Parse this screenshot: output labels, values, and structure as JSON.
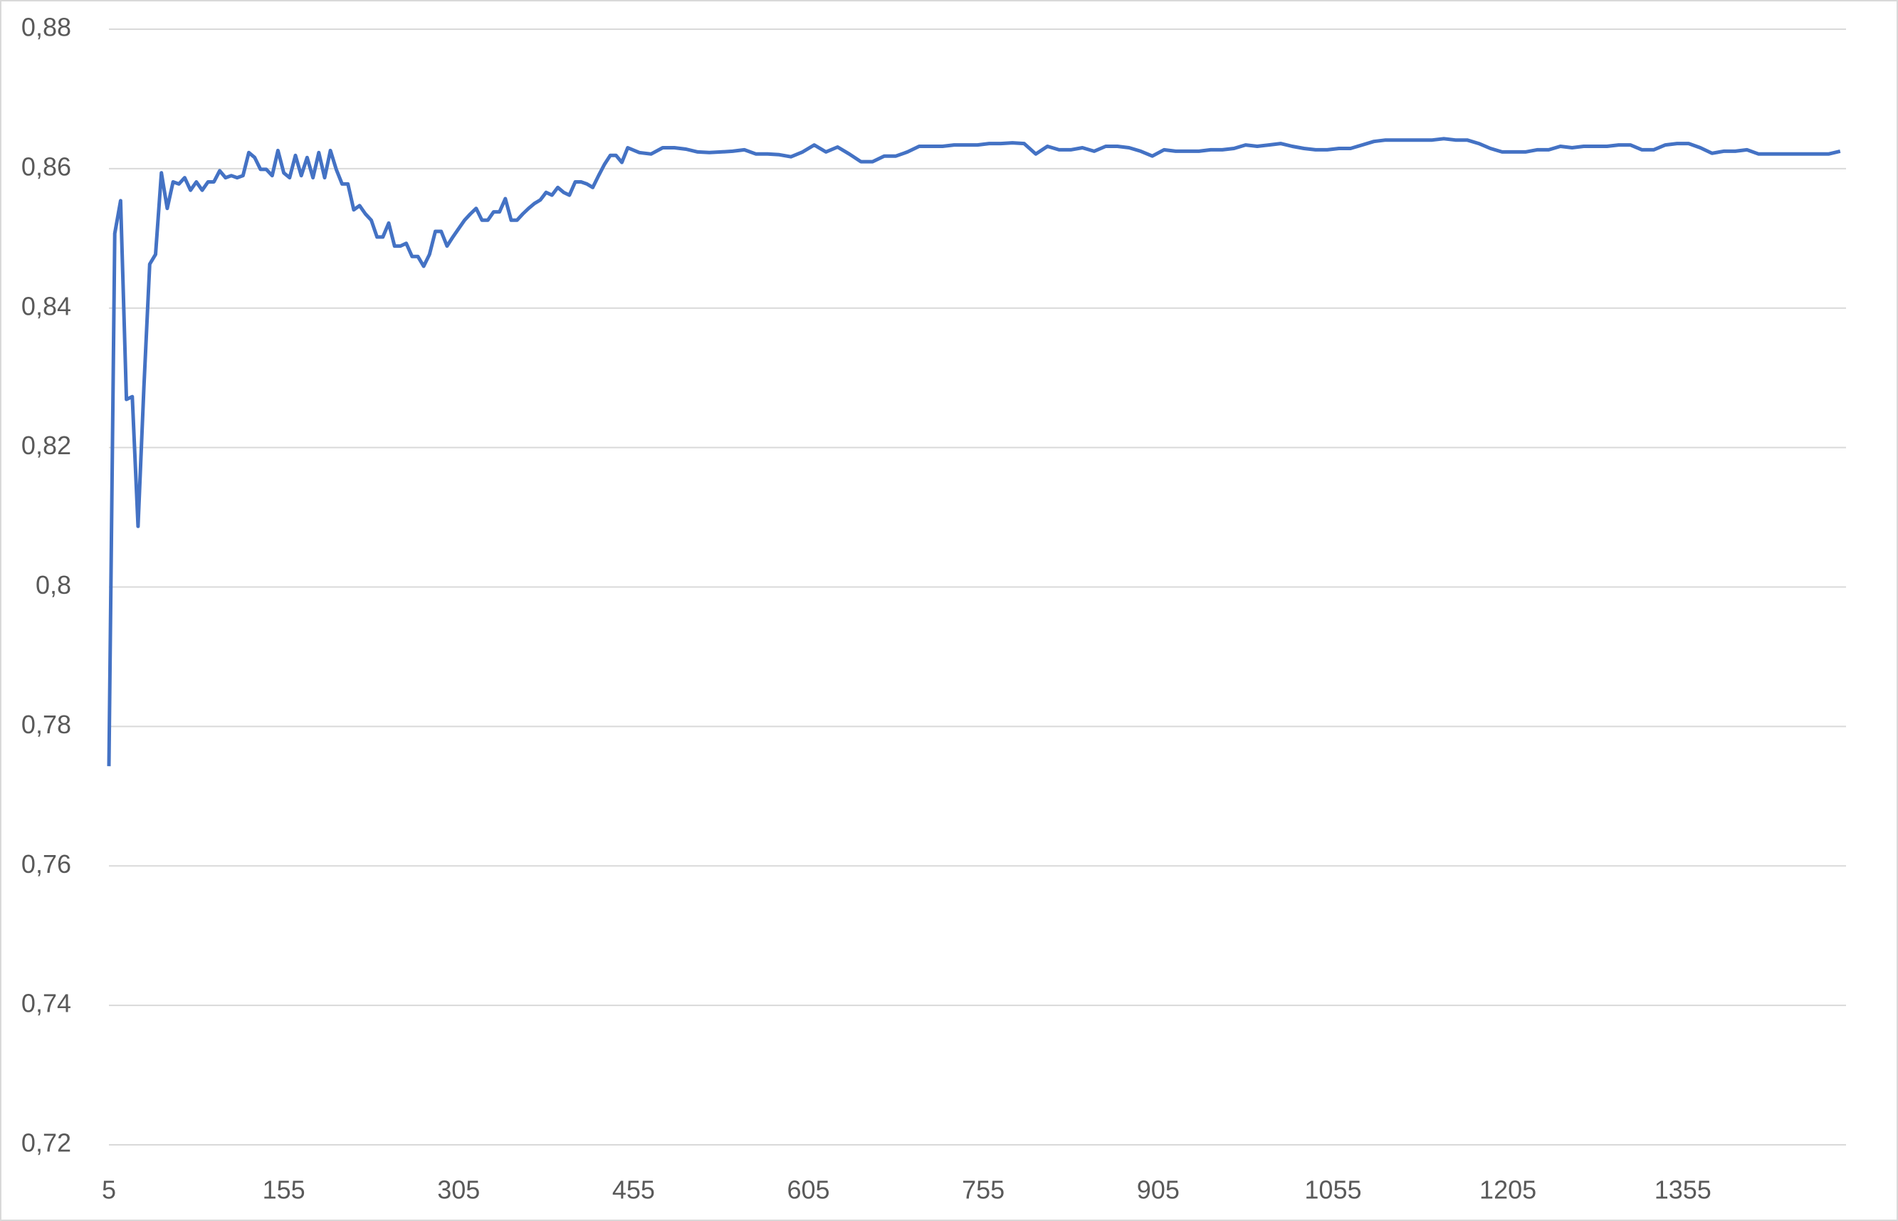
{
  "chart_data": {
    "type": "line",
    "color": "#4472c4",
    "grid": true,
    "x": [
      5,
      10,
      15,
      20,
      25,
      30,
      35,
      40,
      45,
      50,
      55,
      60,
      65,
      70,
      75,
      80,
      85,
      90,
      95,
      100,
      105,
      110,
      115,
      120,
      125,
      130,
      135,
      140,
      145,
      150,
      155,
      160,
      165,
      170,
      175,
      180,
      185,
      190,
      195,
      200,
      205,
      210,
      215,
      220,
      225,
      230,
      235,
      240,
      245,
      250,
      255,
      260,
      265,
      270,
      275,
      280,
      285,
      290,
      295,
      300,
      305,
      310,
      315,
      320,
      325,
      330,
      335,
      340,
      345,
      350,
      355,
      360,
      365,
      370,
      375,
      380,
      385,
      390,
      395,
      400,
      405,
      410,
      415,
      420,
      425,
      430,
      435,
      440,
      445,
      450,
      460,
      470,
      480,
      490,
      500,
      510,
      520,
      530,
      540,
      550,
      560,
      570,
      580,
      590,
      600,
      610,
      620,
      630,
      640,
      650,
      660,
      670,
      680,
      690,
      700,
      710,
      720,
      730,
      740,
      750,
      760,
      770,
      780,
      790,
      800,
      810,
      820,
      830,
      840,
      850,
      860,
      870,
      880,
      890,
      900,
      910,
      920,
      930,
      940,
      950,
      960,
      970,
      980,
      990,
      1000,
      1010,
      1020,
      1030,
      1040,
      1050,
      1060,
      1070,
      1080,
      1090,
      1100,
      1110,
      1120,
      1130,
      1140,
      1150,
      1160,
      1170,
      1180,
      1190,
      1200,
      1210,
      1220,
      1230,
      1240,
      1250,
      1260,
      1270,
      1280,
      1290,
      1300,
      1310,
      1320,
      1330,
      1340,
      1350,
      1360,
      1370,
      1380,
      1390,
      1400,
      1410,
      1420,
      1430,
      1440,
      1450,
      1460,
      1470,
      1480,
      1490
    ],
    "values": [
      0.7743,
      0.8507,
      0.8554,
      0.8269,
      0.8273,
      0.8087,
      0.8286,
      0.8463,
      0.8477,
      0.8594,
      0.8543,
      0.8581,
      0.8578,
      0.8587,
      0.8569,
      0.8581,
      0.8569,
      0.8581,
      0.8581,
      0.8597,
      0.8587,
      0.859,
      0.8587,
      0.859,
      0.8623,
      0.8616,
      0.8599,
      0.8599,
      0.859,
      0.8626,
      0.8594,
      0.8587,
      0.8619,
      0.859,
      0.8616,
      0.8587,
      0.8623,
      0.8587,
      0.8626,
      0.8599,
      0.8578,
      0.8578,
      0.8541,
      0.8547,
      0.8535,
      0.8526,
      0.8502,
      0.8502,
      0.8522,
      0.8489,
      0.8489,
      0.8493,
      0.8474,
      0.8474,
      0.846,
      0.8477,
      0.851,
      0.851,
      0.8489,
      0.8502,
      0.8514,
      0.8526,
      0.8535,
      0.8543,
      0.8526,
      0.8526,
      0.8538,
      0.8538,
      0.8557,
      0.8526,
      0.8526,
      0.8535,
      0.8543,
      0.855,
      0.8555,
      0.8566,
      0.8562,
      0.8573,
      0.8566,
      0.8562,
      0.8581,
      0.8581,
      0.8578,
      0.8573,
      0.859,
      0.8606,
      0.8619,
      0.8619,
      0.8609,
      0.863,
      0.8623,
      0.8621,
      0.863,
      0.863,
      0.8628,
      0.8624,
      0.8623,
      0.8624,
      0.8625,
      0.8627,
      0.8621,
      0.8621,
      0.862,
      0.8617,
      0.8624,
      0.8634,
      0.8624,
      0.8631,
      0.8621,
      0.861,
      0.861,
      0.8618,
      0.8618,
      0.8624,
      0.8632,
      0.8632,
      0.8632,
      0.8634,
      0.8634,
      0.8634,
      0.8636,
      0.8636,
      0.8637,
      0.8636,
      0.8621,
      0.8632,
      0.8627,
      0.8627,
      0.863,
      0.8625,
      0.8632,
      0.8632,
      0.863,
      0.8625,
      0.8618,
      0.8627,
      0.8625,
      0.8625,
      0.8625,
      0.8627,
      0.8627,
      0.8629,
      0.8634,
      0.8632,
      0.8634,
      0.8636,
      0.8632,
      0.8629,
      0.8627,
      0.8627,
      0.8629,
      0.8629,
      0.8634,
      0.8639,
      0.8641,
      0.8641,
      0.8641,
      0.8641,
      0.8641,
      0.8643,
      0.8641,
      0.8641,
      0.8636,
      0.8629,
      0.8624,
      0.8624,
      0.8624,
      0.8627,
      0.8627,
      0.8632,
      0.863,
      0.8632,
      0.8632,
      0.8632,
      0.8634,
      0.8634,
      0.8627,
      0.8627,
      0.8634,
      0.8636,
      0.8636,
      0.863,
      0.8622,
      0.8625,
      0.8625,
      0.8627,
      0.8621,
      0.8621,
      0.8621,
      0.8621,
      0.8621,
      0.8621,
      0.8621,
      0.8625
    ],
    "xlim": [
      5,
      1495
    ],
    "xticks": [
      5,
      155,
      305,
      455,
      605,
      755,
      905,
      1055,
      1205,
      1355
    ],
    "ylim": [
      0.72,
      0.88
    ],
    "yticks": [
      {
        "value": 0.72,
        "label": "0,72"
      },
      {
        "value": 0.74,
        "label": "0,74"
      },
      {
        "value": 0.76,
        "label": "0,76"
      },
      {
        "value": 0.78,
        "label": "0,78"
      },
      {
        "value": 0.8,
        "label": "0,8"
      },
      {
        "value": 0.82,
        "label": "0,82"
      },
      {
        "value": 0.84,
        "label": "0,84"
      },
      {
        "value": 0.86,
        "label": "0,86"
      },
      {
        "value": 0.88,
        "label": "0,88"
      }
    ]
  }
}
